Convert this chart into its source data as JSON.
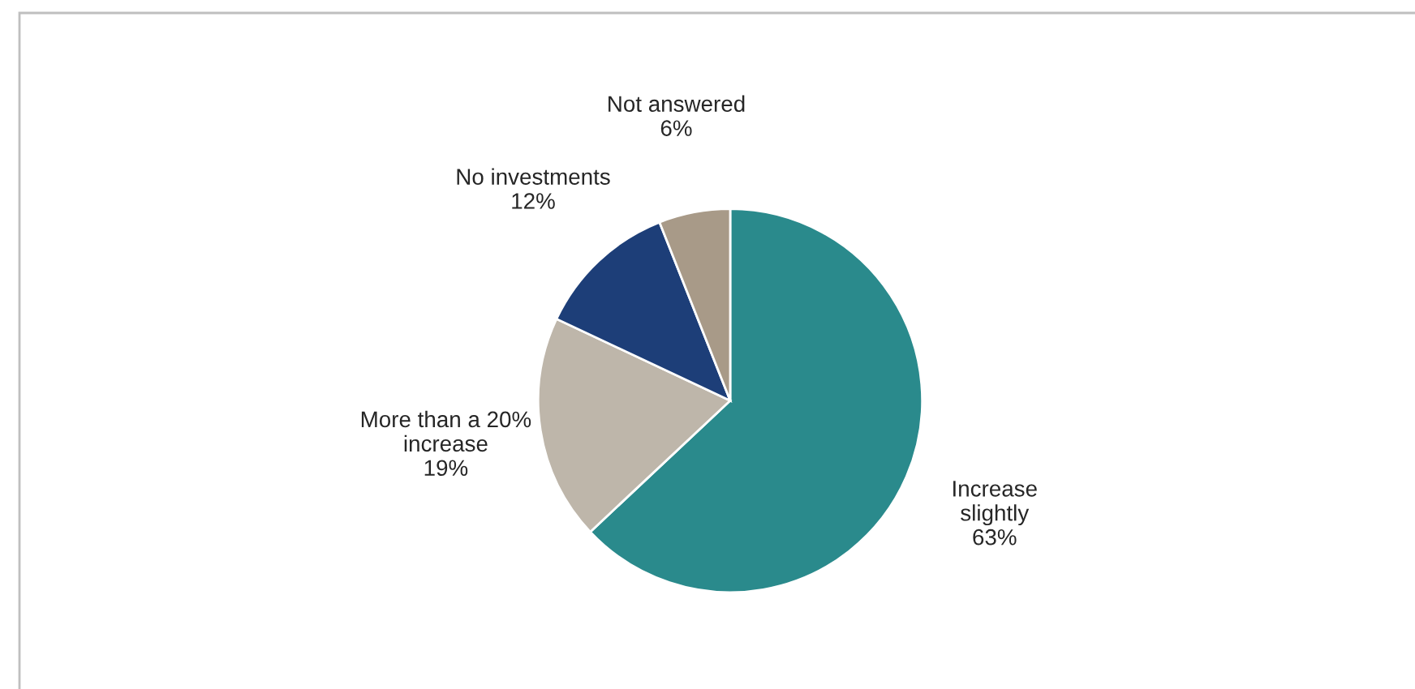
{
  "chart_data": {
    "type": "pie",
    "categories": [
      "Increase slightly",
      "More than a 20% increase",
      "No investments",
      "Not answered"
    ],
    "values": [
      63,
      19,
      12,
      6
    ],
    "value_labels": [
      "63%",
      "19%",
      "12%",
      "6%"
    ],
    "colors": [
      "#2a8a8c",
      "#beb6aa",
      "#1d3e78",
      "#a89a88"
    ],
    "legend": false
  }
}
